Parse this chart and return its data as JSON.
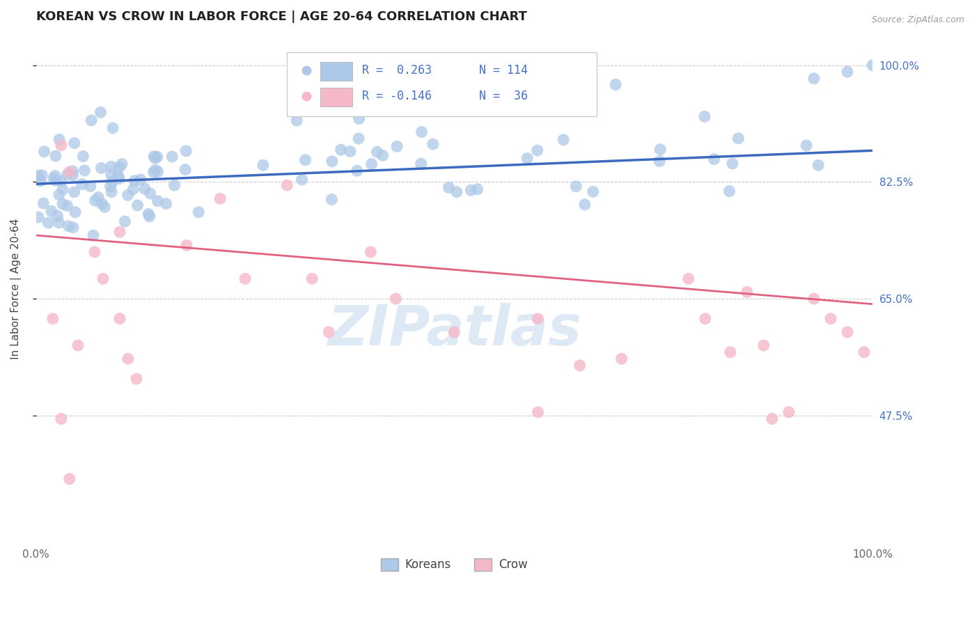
{
  "title": "KOREAN VS CROW IN LABOR FORCE | AGE 20-64 CORRELATION CHART",
  "source_text": "Source: ZipAtlas.com",
  "ylabel": "In Labor Force | Age 20-64",
  "xlim": [
    0.0,
    1.0
  ],
  "ylim": [
    0.28,
    1.05
  ],
  "yticks": [
    0.475,
    0.65,
    0.825,
    1.0
  ],
  "ytick_labels": [
    "47.5%",
    "65.0%",
    "82.5%",
    "100.0%"
  ],
  "xticks": [
    0.0,
    1.0
  ],
  "xtick_labels": [
    "0.0%",
    "100.0%"
  ],
  "blue_R": 0.263,
  "blue_N": 114,
  "pink_R": -0.146,
  "pink_N": 36,
  "blue_color": "#adc8e8",
  "blue_line_color": "#3b6abf",
  "pink_color": "#f5b8c8",
  "pink_line_color": "#e06080",
  "legend_label_blue": "Koreans",
  "legend_label_pink": "Crow",
  "watermark": "ZIPatlas",
  "title_fontsize": 13,
  "axis_label_fontsize": 11,
  "tick_fontsize": 11,
  "blue_trendline_y": [
    0.822,
    0.872
  ],
  "pink_trendline_y": [
    0.745,
    0.642
  ]
}
